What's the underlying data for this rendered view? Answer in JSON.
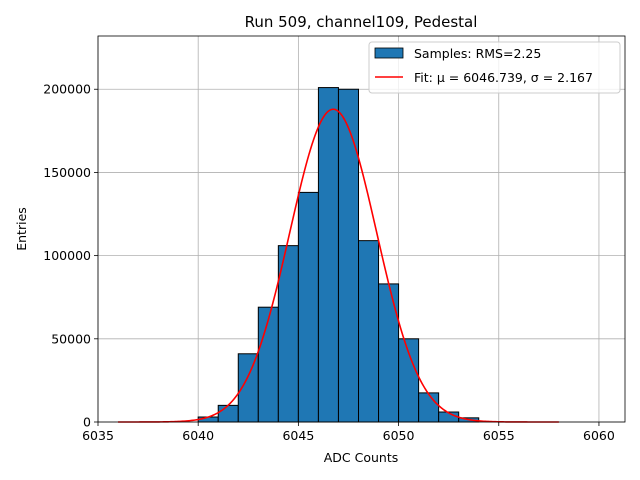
{
  "chart_data": {
    "type": "bar",
    "title": "Run 509, channel109, Pedestal",
    "xlabel": "ADC Counts",
    "ylabel": "Entries",
    "xlim": [
      6035,
      6061.3
    ],
    "ylim": [
      0,
      232000
    ],
    "xticks": [
      6035,
      6040,
      6045,
      6050,
      6055,
      6060
    ],
    "yticks": [
      0,
      50000,
      100000,
      150000,
      200000
    ],
    "grid": true,
    "legend_position": "top-right",
    "bin_width": 1,
    "series": [
      {
        "name": "Samples: RMS=2.25",
        "kind": "histogram",
        "color": "#1f77b4",
        "edge_color": "#000000",
        "bin_starts": [
          6040,
          6041,
          6042,
          6043,
          6044,
          6045,
          6046,
          6047,
          6048,
          6049,
          6050,
          6051,
          6052,
          6053
        ],
        "values": [
          3000,
          10000,
          41000,
          69000,
          106000,
          138000,
          201000,
          200000,
          109000,
          83000,
          50000,
          17500,
          6000,
          2500
        ]
      },
      {
        "name": "Fit: μ = 6046.739, σ = 2.167",
        "kind": "gaussian-fit",
        "color": "#ff0000",
        "mu": 6046.739,
        "sigma": 2.167,
        "peak": 188000,
        "x_range": [
          6036,
          6058
        ]
      }
    ]
  }
}
